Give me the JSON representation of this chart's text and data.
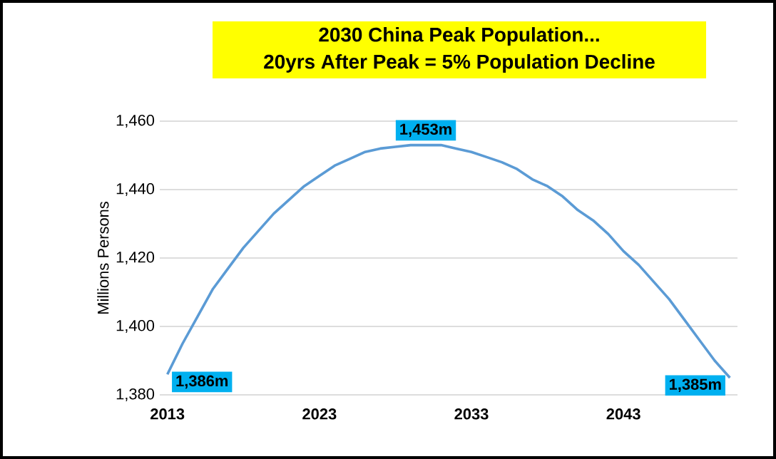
{
  "chart_data": {
    "type": "line",
    "title": "2030 China Peak Population...\n20yrs After Peak = 5% Population Decline",
    "ylabel": "Millions Persons",
    "x": [
      2013,
      2014,
      2015,
      2016,
      2017,
      2018,
      2019,
      2020,
      2021,
      2022,
      2023,
      2024,
      2025,
      2026,
      2027,
      2028,
      2029,
      2030,
      2031,
      2032,
      2033,
      2034,
      2035,
      2036,
      2037,
      2038,
      2039,
      2040,
      2041,
      2042,
      2043,
      2044,
      2045,
      2046,
      2047,
      2048,
      2049,
      2050
    ],
    "values": [
      1386,
      1395,
      1403,
      1411,
      1417,
      1423,
      1428,
      1433,
      1437,
      1441,
      1444,
      1447,
      1449,
      1451,
      1452,
      1452.5,
      1453,
      1453,
      1453,
      1452,
      1451,
      1449.5,
      1448,
      1446,
      1443,
      1441,
      1438,
      1434,
      1431,
      1427,
      1422,
      1418,
      1413,
      1408,
      1402,
      1396,
      1390,
      1385
    ],
    "value_labels": [
      "1,386m",
      null,
      null,
      null,
      null,
      null,
      null,
      null,
      null,
      null,
      null,
      null,
      null,
      null,
      null,
      null,
      null,
      "1,453m",
      null,
      null,
      null,
      null,
      null,
      null,
      null,
      null,
      null,
      null,
      null,
      null,
      null,
      null,
      null,
      null,
      null,
      null,
      null,
      "1,385m"
    ],
    "color": "#5b9bd5",
    "xlim": [
      2012.5,
      2050.5
    ],
    "ylim": [
      1380,
      1460
    ],
    "xticks": [
      2013,
      2023,
      2033,
      2043
    ],
    "yticks": [
      {
        "value": 1380,
        "label": "1,380"
      },
      {
        "value": 1400,
        "label": "1,400"
      },
      {
        "value": 1420,
        "label": "1,420"
      },
      {
        "value": 1440,
        "label": "1,440"
      },
      {
        "value": 1460,
        "label": "1,460"
      }
    ],
    "grid": "y",
    "marker": "none",
    "line_style": "solid"
  }
}
